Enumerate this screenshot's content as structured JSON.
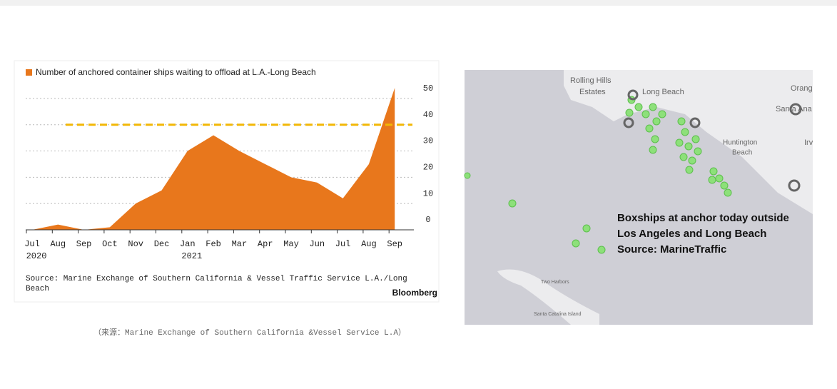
{
  "chart_data": {
    "type": "area",
    "legend": "Number of anchored container ships waiting to offload at L.A.-Long Beach",
    "categories": [
      "Jul",
      "Aug",
      "Sep",
      "Oct",
      "Nov",
      "Dec",
      "Jan",
      "Feb",
      "Mar",
      "Apr",
      "May",
      "Jun",
      "Jul",
      "Aug",
      "Sep"
    ],
    "years": [
      "2020",
      null,
      null,
      null,
      null,
      null,
      "2021",
      null,
      null,
      null,
      null,
      null,
      null,
      null,
      null
    ],
    "values": [
      0,
      2,
      0,
      1,
      10,
      15,
      30,
      36,
      30,
      25,
      20,
      18,
      12,
      25,
      54
    ],
    "color": "#e8771c",
    "reference_line": 40,
    "reference_color": "#f2b705",
    "ylim": [
      0,
      55
    ],
    "yticks": [
      0,
      10,
      20,
      30,
      40,
      50
    ],
    "grid": true,
    "source": "Source: Marine Exchange of Southern California & Vessel Traffic Service L.A./Long Beach",
    "brand": "Bloomberg"
  },
  "caption": "（来源：Marine Exchange of Southern California &Vessel Service L.A）",
  "map": {
    "places": [
      "Rolling Hills",
      "Estates",
      "Long Beach",
      "Orang",
      "Santa Ana",
      "Huntington",
      "Beach",
      "Irv",
      "Two Harbors",
      "Santa Catalina Island"
    ],
    "overlay": [
      "Boxships at anchor today outside",
      "Los Angeles and Long Beach",
      "Source: MarineTraffic"
    ]
  }
}
